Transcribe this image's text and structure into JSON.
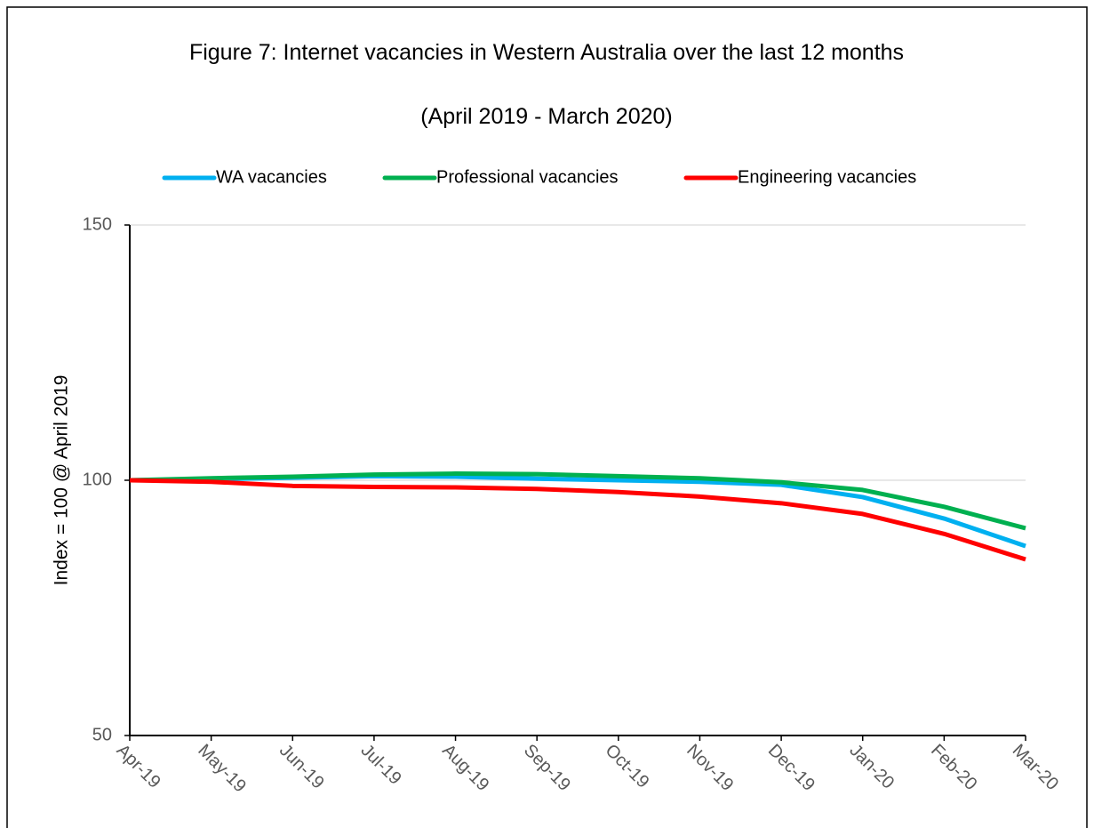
{
  "chart_data": {
    "type": "line",
    "title": "Figure 7: Internet vacancies in Western Australia over the last 12 months",
    "subtitle": "(April 2019 - March 2020)",
    "y_label": "Index = 100 @ April 2019",
    "categories": [
      "Apr-19",
      "May-19",
      "Jun-19",
      "Jul-19",
      "Aug-19",
      "Sep-19",
      "Oct-19",
      "Nov-19",
      "Dec-19",
      "Jan-20",
      "Feb-20",
      "Mar-20"
    ],
    "series": [
      {
        "name": "WA vacancies",
        "color": "#00b0f0",
        "values": [
          100,
          100.2,
          100.5,
          100.8,
          100.7,
          100.3,
          100,
          99.7,
          99.1,
          96.7,
          92.5,
          87.1
        ]
      },
      {
        "name": "Professional vacancies",
        "color": "#00b050",
        "values": [
          100,
          100.4,
          100.7,
          101.1,
          101.3,
          101.2,
          100.8,
          100.4,
          99.6,
          98.1,
          94.8,
          90.6
        ]
      },
      {
        "name": "Engineering vacancies",
        "color": "#ff0000",
        "values": [
          100,
          99.7,
          98.9,
          98.7,
          98.6,
          98.3,
          97.7,
          96.8,
          95.5,
          93.4,
          89.5,
          84.5
        ]
      }
    ],
    "ylim": [
      50,
      150
    ],
    "yticks": [
      50,
      100,
      150
    ],
    "grid": true,
    "legend": "top"
  }
}
